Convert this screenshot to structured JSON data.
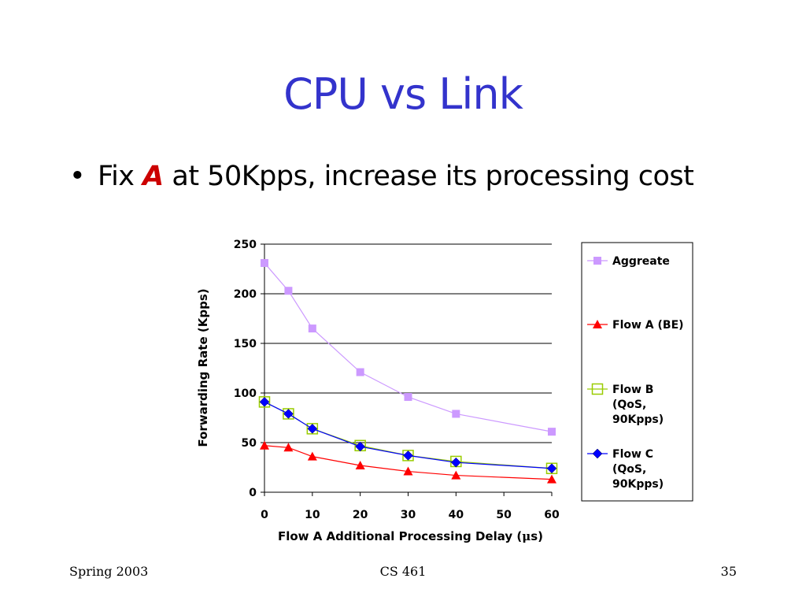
{
  "slide": {
    "title": "CPU vs Link",
    "bullet": {
      "prefix": "Fix ",
      "accent": "A",
      "suffix": " at 50Kpps, increase its processing cost"
    },
    "footer": {
      "left": "Spring 2003",
      "center": "CS 461",
      "right": "35"
    }
  },
  "colors": {
    "title": "#3333cc",
    "accent": "#cc0000",
    "aggregate": "#cc99ff",
    "flow_a": "#ff0000",
    "flow_b": "#99cc00",
    "flow_c": "#0000ff"
  },
  "chart_data": {
    "type": "line",
    "title": "",
    "xlabel_main": "Flow A Additional Processing Delay (",
    "xlabel_mu": "μ",
    "xlabel_end": "s)",
    "ylabel": "Forwarding Rate (Kpps)",
    "xlim": [
      0,
      60
    ],
    "ylim": [
      0,
      250
    ],
    "xticks": [
      0,
      10,
      20,
      30,
      40,
      50,
      60
    ],
    "yticks": [
      0,
      50,
      100,
      150,
      200,
      250
    ],
    "grid": "horizontal",
    "legend_position": "right",
    "series": [
      {
        "name": "Aggreate",
        "marker": "square",
        "x": [
          0,
          5,
          10,
          20,
          30,
          40,
          60
        ],
        "y": [
          231,
          203,
          165,
          121,
          96,
          79,
          61
        ]
      },
      {
        "name": "Flow A (BE)",
        "marker": "triangle",
        "x": [
          0,
          5,
          10,
          20,
          30,
          40,
          60
        ],
        "y": [
          47,
          45,
          36,
          27,
          21,
          17,
          13
        ]
      },
      {
        "name": "Flow B (QoS, 90Kpps)",
        "legend_lines": [
          "Flow B",
          "(QoS,",
          "90Kpps)"
        ],
        "marker": "open-square",
        "x": [
          0,
          5,
          10,
          20,
          30,
          40,
          60
        ],
        "y": [
          91,
          79,
          64,
          47,
          37,
          31,
          24
        ]
      },
      {
        "name": "Flow C (QoS, 90Kpps)",
        "legend_lines": [
          "Flow C",
          "(QoS,",
          "90Kpps)"
        ],
        "marker": "diamond",
        "x": [
          0,
          5,
          10,
          20,
          30,
          40,
          60
        ],
        "y": [
          91,
          79,
          64,
          46,
          37,
          30,
          24
        ]
      }
    ]
  }
}
